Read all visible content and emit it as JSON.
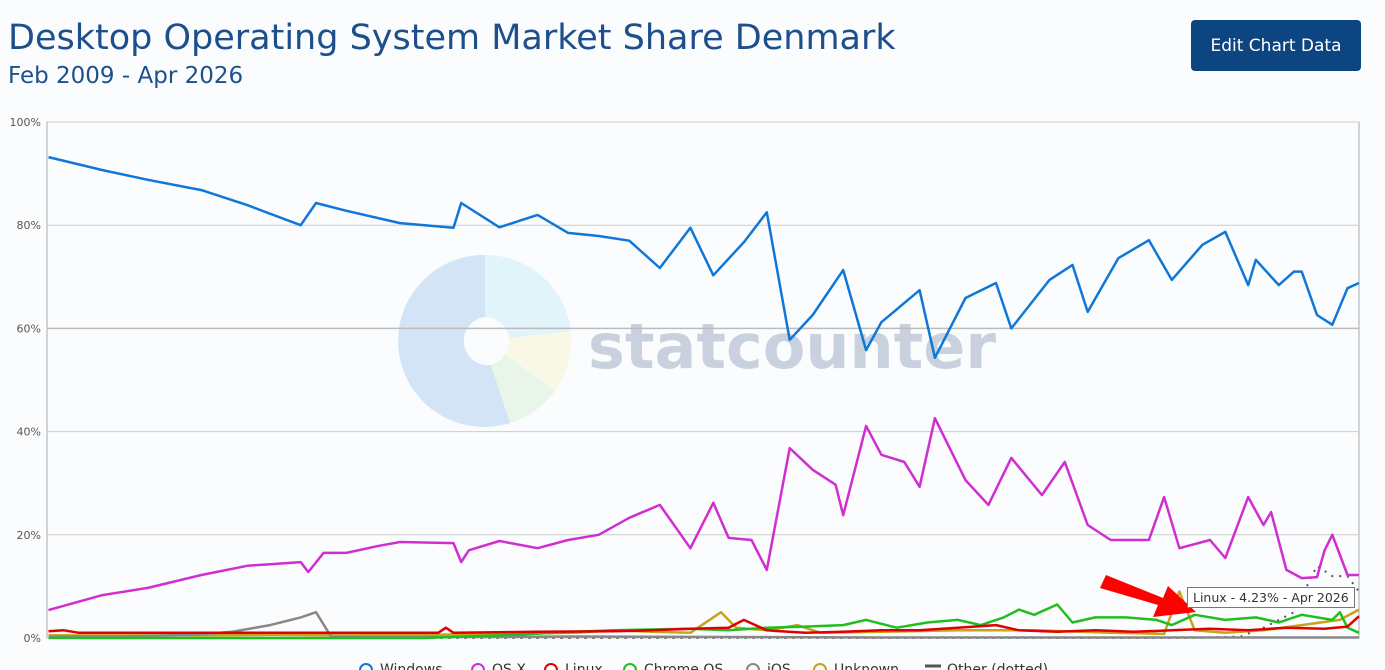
{
  "header": {
    "title": "Desktop Operating System Market Share Denmark",
    "subtitle": "Feb 2009 - Apr 2026",
    "edit_button": "Edit Chart Data"
  },
  "watermark": {
    "logo_text": "statcounter"
  },
  "tooltip": {
    "text": "Linux - 4.23% - Apr 2026"
  },
  "colors": {
    "accent": "#0d4581",
    "arrow": "#ff0000"
  },
  "chart_data": {
    "type": "line",
    "title": "Desktop Operating System Market Share Denmark",
    "subtitle": "Feb 2009 - Apr 2026",
    "x_unit": "year (decimal)",
    "xlim": [
      2009.08,
      2026.25
    ],
    "ylim": [
      0,
      100
    ],
    "y_ticks": [
      "0%",
      "20%",
      "40%",
      "60%",
      "80%",
      "100%"
    ],
    "y_tick_values": [
      0,
      20,
      40,
      60,
      80,
      100
    ],
    "grid": true,
    "legend_position": "bottom",
    "series": [
      {
        "name": "Windows",
        "color": "#0f77d8",
        "dotted": false,
        "points": [
          [
            2009.1,
            93.2
          ],
          [
            2009.8,
            90.7
          ],
          [
            2010.4,
            88.8
          ],
          [
            2011.1,
            86.8
          ],
          [
            2011.7,
            83.9
          ],
          [
            2012.4,
            80
          ],
          [
            2012.6,
            84.3
          ],
          [
            2013.0,
            82.8
          ],
          [
            2013.7,
            80.4
          ],
          [
            2014.4,
            79.5
          ],
          [
            2014.5,
            84.3
          ],
          [
            2015.0,
            79.6
          ],
          [
            2015.5,
            82
          ],
          [
            2015.9,
            78.5
          ],
          [
            2016.3,
            77.9
          ],
          [
            2016.7,
            77
          ],
          [
            2017.1,
            71.7
          ],
          [
            2017.5,
            79.5
          ],
          [
            2017.8,
            70.3
          ],
          [
            2018.2,
            76.7
          ],
          [
            2018.5,
            82.5
          ],
          [
            2018.8,
            57.8
          ],
          [
            2019.1,
            62.6
          ],
          [
            2019.5,
            71.3
          ],
          [
            2019.8,
            55.8
          ],
          [
            2020.0,
            61.2
          ],
          [
            2020.5,
            67.4
          ],
          [
            2020.7,
            54.3
          ],
          [
            2021.1,
            65.9
          ],
          [
            2021.5,
            68.8
          ],
          [
            2021.7,
            60
          ],
          [
            2022.2,
            69.4
          ],
          [
            2022.5,
            72.3
          ],
          [
            2022.7,
            63.2
          ],
          [
            2023.1,
            73.6
          ],
          [
            2023.5,
            77.1
          ],
          [
            2023.8,
            69.4
          ],
          [
            2024.2,
            76.2
          ],
          [
            2024.5,
            78.7
          ],
          [
            2024.8,
            68.4
          ],
          [
            2024.9,
            73.3
          ],
          [
            2025.2,
            68.4
          ],
          [
            2025.4,
            71
          ],
          [
            2025.5,
            71
          ],
          [
            2025.7,
            62.6
          ],
          [
            2025.9,
            60.7
          ],
          [
            2026.1,
            67.8
          ],
          [
            2026.25,
            68.8
          ]
        ]
      },
      {
        "name": "OS X",
        "color": "#d02ed0",
        "dotted": false,
        "points": [
          [
            2009.1,
            5.4
          ],
          [
            2009.8,
            8.3
          ],
          [
            2010.4,
            9.7
          ],
          [
            2011.1,
            12.2
          ],
          [
            2011.7,
            14
          ],
          [
            2012.4,
            14.7
          ],
          [
            2012.5,
            12.8
          ],
          [
            2012.7,
            16.5
          ],
          [
            2013.0,
            16.5
          ],
          [
            2013.4,
            17.8
          ],
          [
            2013.7,
            18.6
          ],
          [
            2014.4,
            18.4
          ],
          [
            2014.5,
            14.7
          ],
          [
            2014.6,
            17
          ],
          [
            2015.0,
            18.8
          ],
          [
            2015.5,
            17.4
          ],
          [
            2015.9,
            19
          ],
          [
            2016.3,
            20
          ],
          [
            2016.7,
            23.3
          ],
          [
            2017.1,
            25.8
          ],
          [
            2017.5,
            17.4
          ],
          [
            2017.8,
            26.2
          ],
          [
            2018.0,
            19.4
          ],
          [
            2018.3,
            19
          ],
          [
            2018.5,
            13.2
          ],
          [
            2018.8,
            36.8
          ],
          [
            2019.1,
            32.6
          ],
          [
            2019.4,
            29.7
          ],
          [
            2019.5,
            23.8
          ],
          [
            2019.8,
            41.1
          ],
          [
            2020.0,
            35.5
          ],
          [
            2020.3,
            34.1
          ],
          [
            2020.5,
            29.3
          ],
          [
            2020.7,
            42.6
          ],
          [
            2021.1,
            30.6
          ],
          [
            2021.4,
            25.8
          ],
          [
            2021.7,
            34.9
          ],
          [
            2022.1,
            27.7
          ],
          [
            2022.4,
            34.1
          ],
          [
            2022.7,
            21.9
          ],
          [
            2023.0,
            19
          ],
          [
            2023.5,
            19
          ],
          [
            2023.7,
            27.3
          ],
          [
            2023.9,
            17.4
          ],
          [
            2024.3,
            19
          ],
          [
            2024.5,
            15.5
          ],
          [
            2024.8,
            27.3
          ],
          [
            2025.0,
            21.9
          ],
          [
            2025.1,
            24.4
          ],
          [
            2025.3,
            13.2
          ],
          [
            2025.5,
            11.6
          ],
          [
            2025.7,
            11.8
          ],
          [
            2025.8,
            17
          ],
          [
            2025.9,
            20
          ],
          [
            2026.1,
            12.2
          ],
          [
            2026.25,
            12.2
          ]
        ]
      },
      {
        "name": "Linux",
        "color": "#e00000",
        "dotted": false,
        "points": [
          [
            2009.1,
            1.3
          ],
          [
            2009.3,
            1.5
          ],
          [
            2009.5,
            1
          ],
          [
            2010.5,
            1
          ],
          [
            2011.5,
            1
          ],
          [
            2012.5,
            1
          ],
          [
            2013.5,
            1
          ],
          [
            2014.2,
            1
          ],
          [
            2014.3,
            2
          ],
          [
            2014.4,
            1
          ],
          [
            2015.5,
            1.2
          ],
          [
            2016.5,
            1.3
          ],
          [
            2017.0,
            1.5
          ],
          [
            2017.5,
            1.8
          ],
          [
            2018.0,
            2
          ],
          [
            2018.2,
            3.5
          ],
          [
            2018.5,
            1.5
          ],
          [
            2019.0,
            1
          ],
          [
            2019.5,
            1.2
          ],
          [
            2020.0,
            1.5
          ],
          [
            2020.5,
            1.5
          ],
          [
            2021.0,
            2
          ],
          [
            2021.5,
            2.5
          ],
          [
            2021.8,
            1.5
          ],
          [
            2022.3,
            1.2
          ],
          [
            2022.8,
            1.5
          ],
          [
            2023.3,
            1.2
          ],
          [
            2023.8,
            1.5
          ],
          [
            2024.3,
            1.8
          ],
          [
            2024.8,
            1.5
          ],
          [
            2025.3,
            2
          ],
          [
            2025.8,
            1.8
          ],
          [
            2026.1,
            2.2
          ],
          [
            2026.25,
            4.23
          ]
        ]
      },
      {
        "name": "Chrome OS",
        "color": "#1fbf1f",
        "dotted": false,
        "points": [
          [
            2009.1,
            0
          ],
          [
            2014.0,
            0
          ],
          [
            2015.0,
            0.5
          ],
          [
            2016.0,
            1.2
          ],
          [
            2016.5,
            1.5
          ],
          [
            2017.5,
            1.8
          ],
          [
            2018.0,
            1.5
          ],
          [
            2018.5,
            2
          ],
          [
            2019.0,
            2.2
          ],
          [
            2019.5,
            2.5
          ],
          [
            2019.8,
            3.5
          ],
          [
            2020.2,
            2
          ],
          [
            2020.6,
            3
          ],
          [
            2021.0,
            3.5
          ],
          [
            2021.3,
            2.5
          ],
          [
            2021.6,
            4
          ],
          [
            2021.8,
            5.5
          ],
          [
            2022.0,
            4.5
          ],
          [
            2022.3,
            6.5
          ],
          [
            2022.5,
            3
          ],
          [
            2022.8,
            4
          ],
          [
            2023.2,
            4
          ],
          [
            2023.6,
            3.5
          ],
          [
            2023.8,
            2.5
          ],
          [
            2024.1,
            4.5
          ],
          [
            2024.5,
            3.5
          ],
          [
            2024.9,
            4
          ],
          [
            2025.2,
            3
          ],
          [
            2025.5,
            4.5
          ],
          [
            2025.9,
            3.5
          ],
          [
            2026.0,
            5
          ],
          [
            2026.1,
            2
          ],
          [
            2026.25,
            1
          ]
        ]
      },
      {
        "name": "iOS",
        "color": "#888888",
        "dotted": false,
        "points": [
          [
            2009.1,
            0.3
          ],
          [
            2010.0,
            0.3
          ],
          [
            2011.0,
            0.6
          ],
          [
            2011.5,
            1.2
          ],
          [
            2012.0,
            2.5
          ],
          [
            2012.4,
            4
          ],
          [
            2012.6,
            5
          ],
          [
            2012.8,
            0.2
          ],
          [
            2014.0,
            0.2
          ],
          [
            2016.0,
            0.3
          ],
          [
            2018.0,
            0.2
          ],
          [
            2020.0,
            0.1
          ],
          [
            2022.0,
            0.1
          ],
          [
            2024.0,
            0.1
          ],
          [
            2026.25,
            0.1
          ]
        ]
      },
      {
        "name": "Unknown",
        "color": "#c9a11a",
        "dotted": false,
        "points": [
          [
            2009.1,
            0.5
          ],
          [
            2010.0,
            0.5
          ],
          [
            2011.0,
            0.5
          ],
          [
            2012.0,
            0.6
          ],
          [
            2013.0,
            0.5
          ],
          [
            2014.0,
            0.6
          ],
          [
            2015.0,
            0.8
          ],
          [
            2016.0,
            1
          ],
          [
            2016.5,
            1.5
          ],
          [
            2017.0,
            1.2
          ],
          [
            2017.5,
            1
          ],
          [
            2017.9,
            5
          ],
          [
            2018.1,
            2
          ],
          [
            2018.5,
            1.5
          ],
          [
            2018.9,
            2.5
          ],
          [
            2019.2,
            1
          ],
          [
            2020.0,
            1.2
          ],
          [
            2021.0,
            1.5
          ],
          [
            2022.0,
            1.5
          ],
          [
            2023.0,
            1
          ],
          [
            2023.7,
            0.8
          ],
          [
            2023.9,
            9
          ],
          [
            2024.1,
            1.5
          ],
          [
            2024.5,
            1
          ],
          [
            2025.0,
            1.5
          ],
          [
            2025.5,
            2.5
          ],
          [
            2026.0,
            3.5
          ],
          [
            2026.25,
            5.5
          ]
        ]
      },
      {
        "name": "Other (dotted)",
        "color": "#555555",
        "dotted": true,
        "points": [
          [
            2009.1,
            0
          ],
          [
            2015.0,
            0
          ],
          [
            2020.0,
            0
          ],
          [
            2024.0,
            0
          ],
          [
            2024.7,
            0.3
          ],
          [
            2025.0,
            2
          ],
          [
            2025.4,
            5
          ],
          [
            2025.7,
            14
          ],
          [
            2025.9,
            12
          ],
          [
            2026.1,
            12
          ],
          [
            2026.25,
            9
          ]
        ]
      }
    ]
  }
}
